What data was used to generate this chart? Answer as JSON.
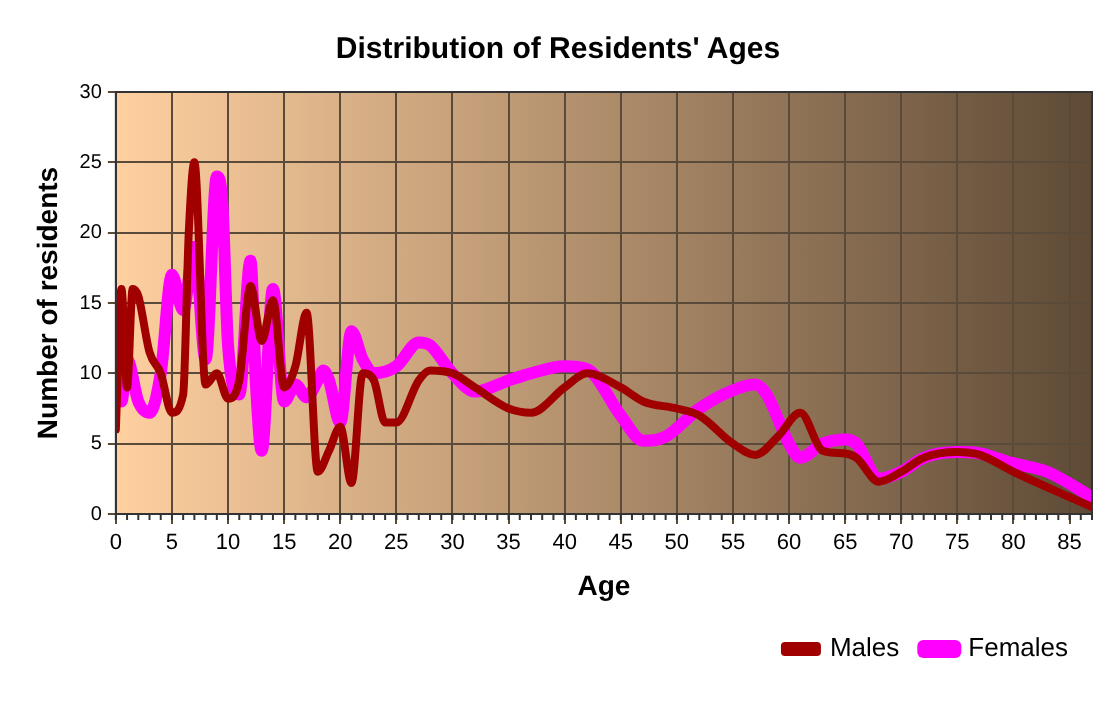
{
  "chart_data": {
    "type": "line",
    "title": "Distribution of Residents' Ages",
    "xlabel": "Age",
    "ylabel": "Number of residents",
    "xlim": [
      0,
      87
    ],
    "xticks": [
      0,
      5,
      10,
      15,
      20,
      25,
      30,
      35,
      40,
      45,
      50,
      55,
      60,
      65,
      70,
      75,
      80,
      85
    ],
    "ylim": [
      0,
      30
    ],
    "yticks": [
      0,
      5,
      10,
      15,
      20,
      25,
      30
    ],
    "grid": true,
    "legend": "bottom right",
    "marker": "none",
    "line_style": "solid",
    "series": [
      {
        "name": "Males",
        "color": "#a00000",
        "x": [
          0,
          0.5,
          1,
          1.5,
          2,
          3,
          4,
          5,
          6,
          6.5,
          7,
          8,
          9,
          10,
          11,
          12,
          13,
          14,
          15,
          16,
          17,
          18,
          19,
          20,
          21,
          22,
          23,
          24,
          25,
          27,
          28,
          30,
          32,
          35,
          37,
          40,
          42,
          45,
          47,
          50,
          52,
          55,
          57,
          59,
          61,
          63,
          65,
          66,
          68,
          70,
          72,
          75,
          77,
          80,
          85,
          87
        ],
        "values": [
          6,
          16,
          9,
          16,
          15.5,
          11.5,
          10,
          7.2,
          8.5,
          20,
          25,
          9.2,
          10,
          8.2,
          9.5,
          16.2,
          12.3,
          15.2,
          9,
          10.5,
          14.3,
          3,
          4.5,
          6.2,
          2.2,
          10,
          9.5,
          6.5,
          6.5,
          9.5,
          10.2,
          10,
          9,
          7.5,
          7.2,
          9,
          10,
          9,
          8,
          7.5,
          7,
          5,
          4.2,
          5.5,
          7.2,
          4.5,
          4.3,
          4,
          2.3,
          3,
          4,
          4.4,
          4.2,
          3,
          1.2,
          0.5
        ]
      },
      {
        "name": "Females",
        "color": "#ff00ff",
        "x": [
          0,
          0.5,
          1,
          2,
          3,
          4,
          5,
          6,
          7,
          8,
          9,
          9.5,
          10,
          11,
          12,
          12.5,
          13,
          14,
          15,
          16,
          17,
          18,
          18.5,
          19,
          20,
          21,
          22,
          23,
          25,
          27,
          28,
          30,
          32,
          35,
          37,
          40,
          42,
          45,
          47,
          49,
          52,
          55,
          57,
          58,
          60,
          61,
          63,
          65,
          66,
          68,
          70,
          72,
          75,
          77,
          80,
          83,
          87
        ],
        "values": [
          15,
          8,
          11,
          8,
          7.2,
          10,
          17,
          14.5,
          19,
          11,
          24,
          22,
          12,
          8.5,
          18,
          9,
          4.5,
          16,
          8,
          9.2,
          8.3,
          9.5,
          10.2,
          9.5,
          6.5,
          13,
          11,
          10,
          10.5,
          12.2,
          12,
          10,
          8.7,
          9.5,
          10,
          10.5,
          10.3,
          7,
          5.2,
          5.5,
          7.5,
          8.8,
          9.2,
          8.5,
          5,
          4,
          5,
          5.3,
          5,
          2.5,
          3,
          4,
          4.4,
          4.3,
          3.6,
          3,
          1.2
        ]
      }
    ]
  }
}
